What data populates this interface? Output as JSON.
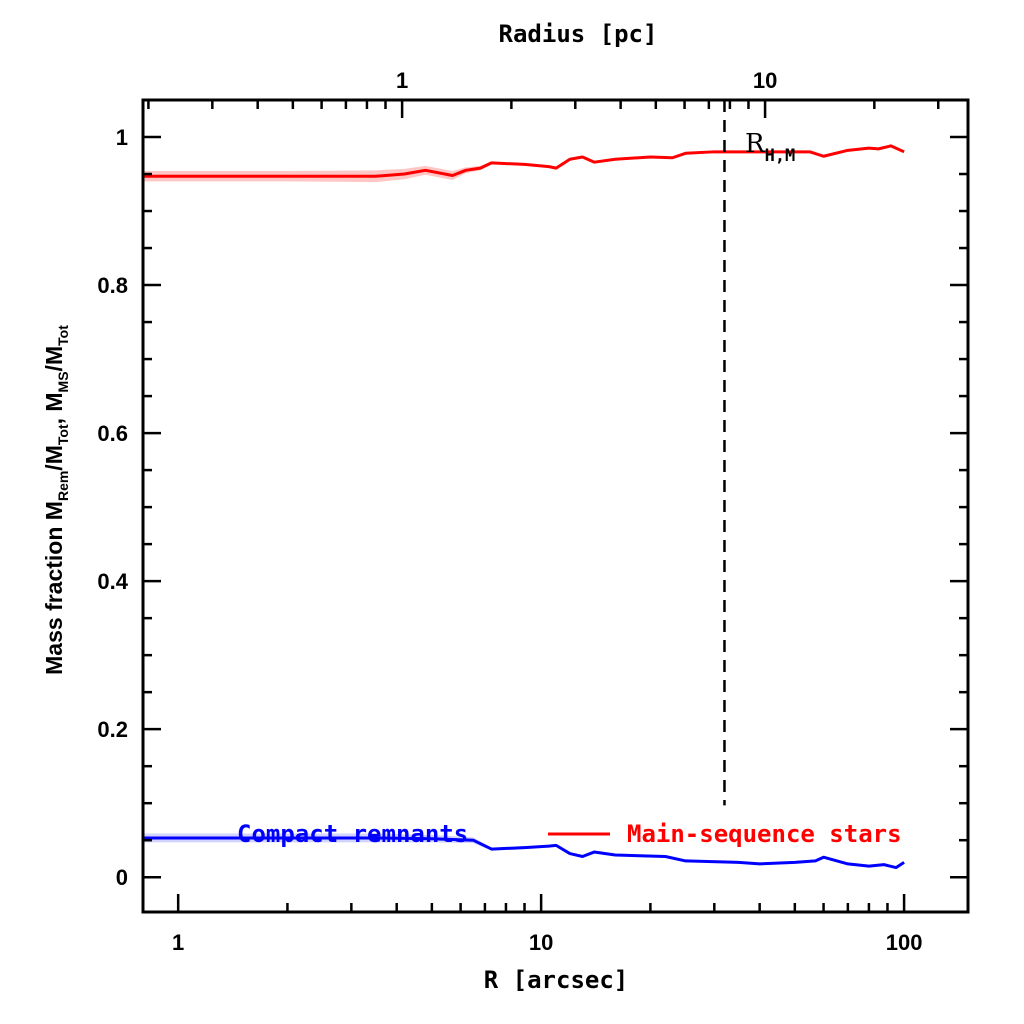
{
  "chart_data": {
    "type": "line",
    "xlabel": "R [arcsec]",
    "ylabel": "Mass fraction  M_Rem/M_Tot, M_MS/M_Tot",
    "top_xlabel": "Radius [pc]",
    "x_scale": "log",
    "xlim": [
      0.8,
      150
    ],
    "ylim": [
      -0.047,
      1.05
    ],
    "x_ticks": [
      "1",
      "10",
      "100"
    ],
    "x_tick_values": [
      1,
      10,
      100
    ],
    "y_ticks": [
      "0",
      "0.2",
      "0.4",
      "0.6",
      "0.8",
      "1"
    ],
    "y_tick_values": [
      0,
      0.2,
      0.4,
      0.6,
      0.8,
      1
    ],
    "top_ticks": [
      "1",
      "10"
    ],
    "top_tick_values_pc": [
      1,
      10
    ],
    "arcsec_per_pc": 4.14,
    "vline": {
      "x": 32,
      "label": "R",
      "label_sub": "H,M",
      "style": "dashed",
      "color": "#000000"
    },
    "legend": "bottom",
    "series": [
      {
        "name": "Compact remnants",
        "color": "#0000ff",
        "x": [
          0.8,
          2,
          3.5,
          5,
          6.5,
          7.3,
          9,
          10.5,
          11,
          12,
          13,
          14,
          16,
          22,
          25,
          35,
          40,
          50,
          57,
          60,
          70,
          80,
          88,
          95,
          100
        ],
        "y": [
          0.053,
          0.053,
          0.053,
          0.052,
          0.05,
          0.038,
          0.04,
          0.042,
          0.043,
          0.032,
          0.028,
          0.034,
          0.03,
          0.028,
          0.022,
          0.02,
          0.018,
          0.02,
          0.022,
          0.027,
          0.018,
          0.015,
          0.017,
          0.013,
          0.02
        ],
        "band": [
          0.006,
          0.006,
          0.006,
          0.005,
          0.004,
          0.002,
          0.002,
          0.001,
          0.001,
          0,
          0,
          0,
          0,
          0,
          0,
          0,
          0,
          0,
          0,
          0,
          0,
          0,
          0,
          0,
          0
        ]
      },
      {
        "name": "Main-sequence stars",
        "color": "#ff0000",
        "x": [
          0.8,
          2,
          3.5,
          4.2,
          4.8,
          5.7,
          6.2,
          6.8,
          7.3,
          9,
          10.5,
          11,
          12,
          13,
          14,
          16,
          20,
          23,
          25,
          30,
          40,
          55,
          60,
          70,
          80,
          85,
          92,
          100
        ],
        "y": [
          0.947,
          0.947,
          0.947,
          0.95,
          0.955,
          0.948,
          0.955,
          0.958,
          0.965,
          0.963,
          0.96,
          0.958,
          0.97,
          0.973,
          0.966,
          0.97,
          0.973,
          0.972,
          0.978,
          0.98,
          0.98,
          0.98,
          0.974,
          0.982,
          0.985,
          0.984,
          0.988,
          0.98
        ],
        "band": [
          0.007,
          0.007,
          0.008,
          0.007,
          0.006,
          0.006,
          0.004,
          0.003,
          0.002,
          0.001,
          0.001,
          0.001,
          0,
          0,
          0,
          0,
          0,
          0,
          0,
          0,
          0,
          0,
          0,
          0,
          0,
          0,
          0,
          0
        ]
      }
    ]
  }
}
